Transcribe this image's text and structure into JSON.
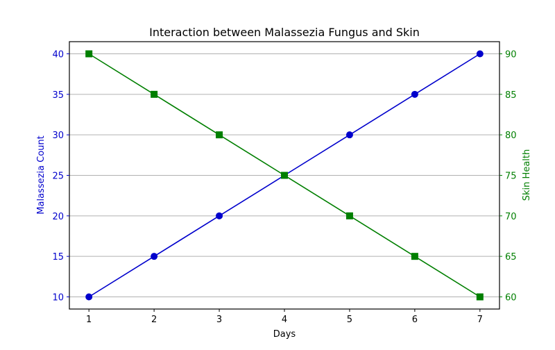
{
  "chart_data": {
    "type": "line",
    "title": "Interaction between Malassezia Fungus and Skin",
    "xlabel": "Days",
    "x": [
      1,
      2,
      3,
      4,
      5,
      6,
      7
    ],
    "x_ticks": [
      1,
      2,
      3,
      4,
      5,
      6,
      7
    ],
    "xlim": [
      0.7,
      7.3
    ],
    "grid": true,
    "series": [
      {
        "name": "Malassezia Count",
        "axis": "left",
        "color": "#0000cc",
        "marker": "circle",
        "values": [
          10,
          15,
          20,
          25,
          30,
          35,
          40
        ]
      },
      {
        "name": "Skin Health",
        "axis": "right",
        "color": "#007f00",
        "marker": "square",
        "values": [
          90,
          85,
          80,
          75,
          70,
          65,
          60
        ]
      }
    ],
    "left_axis": {
      "label": "Malassezia Count",
      "color": "#0000cc",
      "ticks": [
        10,
        15,
        20,
        25,
        30,
        35,
        40
      ],
      "ylim": [
        8.5,
        41.5
      ]
    },
    "right_axis": {
      "label": "Skin Health",
      "color": "#007f00",
      "ticks": [
        60,
        65,
        70,
        75,
        80,
        85,
        90
      ],
      "ylim": [
        58.5,
        91.5
      ]
    }
  }
}
